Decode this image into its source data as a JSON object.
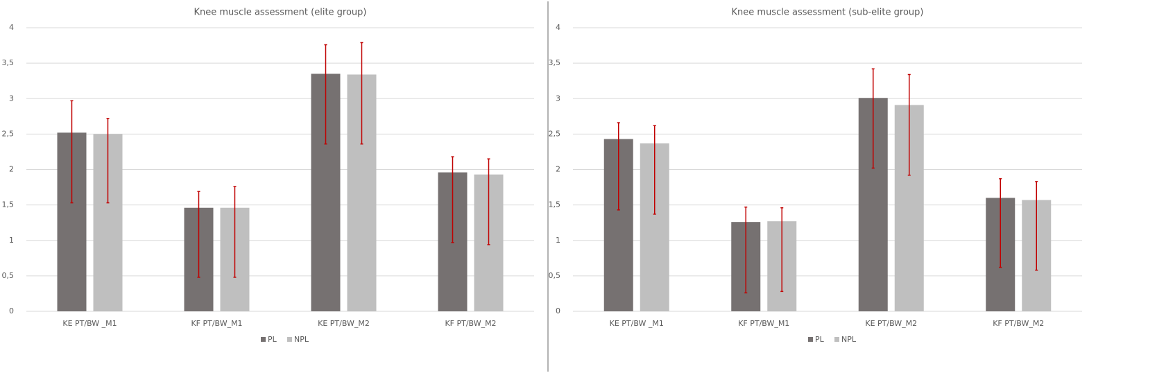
{
  "chart_data": [
    {
      "type": "bar",
      "title": "Knee muscle assessment (elite group)",
      "categories": [
        "KE PT/BW _M1",
        "KF PT/BW_M1",
        "KE PT/BW_M2",
        "KF PT/BW_M2"
      ],
      "series": [
        {
          "name": "PL",
          "color": "#767171",
          "values": [
            2.52,
            1.46,
            3.35,
            1.96
          ],
          "error_plus": [
            0.45,
            0.23,
            0.41,
            0.22
          ],
          "error_minus": [
            0.99,
            0.98,
            0.99,
            0.99
          ]
        },
        {
          "name": "NPL",
          "color": "#bfbfbf",
          "values": [
            2.5,
            1.46,
            3.34,
            1.93
          ],
          "error_plus": [
            0.22,
            0.3,
            0.45,
            0.22
          ],
          "error_minus": [
            0.97,
            0.98,
            0.98,
            0.99
          ]
        }
      ],
      "error_color": "#c00000",
      "ylim": [
        0,
        4
      ],
      "yticks": [
        0,
        {
          "value": 0.5,
          "label": "0,5"
        },
        1,
        {
          "value": 1.5,
          "label": "1,5"
        },
        2,
        {
          "value": 2.5,
          "label": "2,5"
        },
        3,
        {
          "value": 3.5,
          "label": "3,5"
        },
        4
      ],
      "grid": true,
      "legend": "bottom"
    },
    {
      "type": "bar",
      "title": "Knee muscle assessment (sub-elite group)",
      "categories": [
        "KE PT/BW _M1",
        "KF PT/BW_M1",
        "KE PT/BW_M2",
        "KF PT/BW_M2"
      ],
      "series": [
        {
          "name": "PL",
          "color": "#767171",
          "values": [
            2.43,
            1.26,
            3.01,
            1.6
          ],
          "error_plus": [
            0.23,
            0.21,
            0.41,
            0.27
          ],
          "error_minus": [
            1.0,
            1.0,
            0.99,
            0.98
          ]
        },
        {
          "name": "NPL",
          "color": "#bfbfbf",
          "values": [
            2.37,
            1.27,
            2.91,
            1.57
          ],
          "error_plus": [
            0.25,
            0.19,
            0.43,
            0.26
          ],
          "error_minus": [
            1.0,
            0.99,
            0.99,
            0.99
          ]
        }
      ],
      "error_color": "#c00000",
      "ylim": [
        0,
        4
      ],
      "yticks": [
        0,
        {
          "value": 0.5,
          "label": "0,5"
        },
        1,
        {
          "value": 1.5,
          "label": "1,5"
        },
        2,
        {
          "value": 2.5,
          "label": "2,5"
        },
        3,
        {
          "value": 3.5,
          "label": "3,5"
        },
        4
      ],
      "grid": true,
      "legend": "bottom"
    }
  ]
}
